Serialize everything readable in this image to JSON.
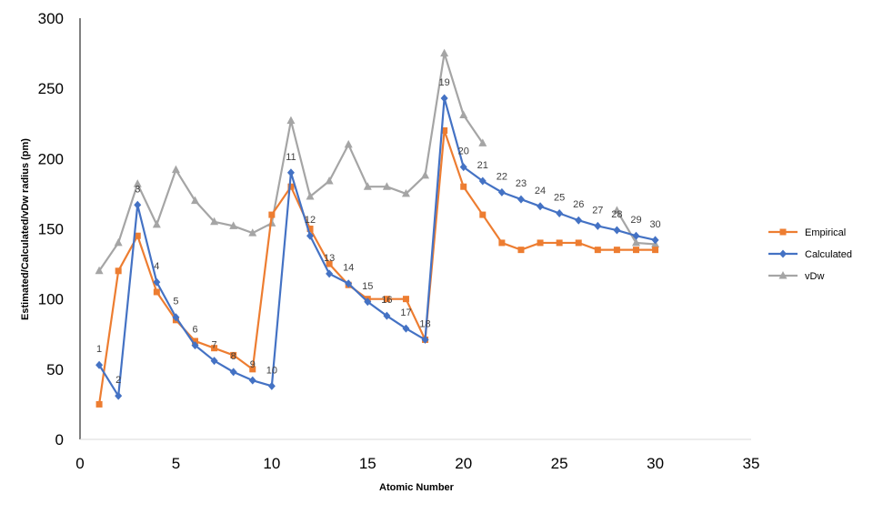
{
  "chart_data": {
    "type": "line",
    "title": "",
    "xlabel": "Atomic Number",
    "ylabel": "Estimated/Calculated/vDw radius (pm)",
    "xlim": [
      0,
      35
    ],
    "ylim": [
      0,
      300
    ],
    "xticks": [
      0,
      5,
      10,
      15,
      20,
      25,
      30,
      35
    ],
    "yticks": [
      0,
      50,
      100,
      150,
      200,
      250,
      300
    ],
    "grid": false,
    "legend_position": "right",
    "x": [
      1,
      2,
      3,
      4,
      5,
      6,
      7,
      8,
      9,
      10,
      11,
      12,
      13,
      14,
      15,
      16,
      17,
      18,
      19,
      20,
      21,
      22,
      23,
      24,
      25,
      26,
      27,
      28,
      29,
      30
    ],
    "point_labels": [
      "1",
      "2",
      "3",
      "4",
      "5",
      "6",
      "7",
      "8",
      "9",
      "10",
      "11",
      "12",
      "13",
      "14",
      "15",
      "16",
      "17",
      "18",
      "19",
      "20",
      "21",
      "22",
      "23",
      "24",
      "25",
      "26",
      "27",
      "28",
      "29",
      "30"
    ],
    "series": [
      {
        "name": "Empirical",
        "color": "#ED7D31",
        "marker": "square",
        "values": [
          25,
          120,
          145,
          105,
          85,
          70,
          65,
          60,
          50,
          160,
          180,
          150,
          125,
          110,
          100,
          100,
          100,
          71,
          220,
          180,
          160,
          140,
          135,
          140,
          140,
          140,
          135,
          135,
          135,
          135
        ]
      },
      {
        "name": "Calculated",
        "color": "#4472C4",
        "marker": "diamond",
        "values": [
          53,
          31,
          167,
          112,
          87,
          67,
          56,
          48,
          42,
          38,
          190,
          145,
          118,
          111,
          98,
          88,
          79,
          71,
          243,
          194,
          184,
          176,
          171,
          166,
          161,
          156,
          152,
          149,
          145,
          142
        ]
      },
      {
        "name": "vDw",
        "color": "#A5A5A5",
        "marker": "triangle",
        "values": [
          120,
          140,
          182,
          153,
          192,
          170,
          155,
          152,
          147,
          154,
          227,
          173,
          184,
          210,
          180,
          180,
          175,
          188,
          275,
          231,
          211,
          null,
          null,
          null,
          null,
          null,
          null,
          163,
          140,
          139
        ]
      }
    ]
  }
}
